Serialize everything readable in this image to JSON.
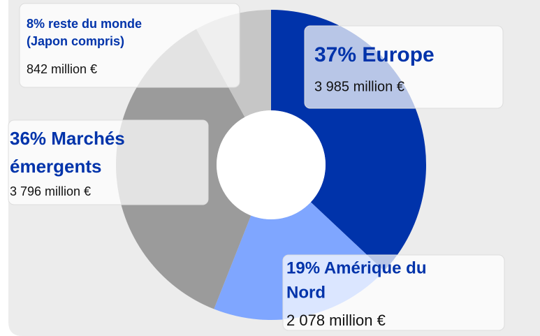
{
  "chart_data": {
    "type": "donut",
    "labels": [
      [
        "37% Europe"
      ],
      [
        "19% Amérique du",
        "Nord"
      ],
      [
        "36% Marchés",
        "émergents"
      ],
      [
        "8% reste du monde",
        "(Japon compris)"
      ]
    ],
    "values": [
      37,
      19,
      36,
      8
    ],
    "amounts": [
      3985,
      2078,
      3796,
      842
    ],
    "amount_labels": [
      "3 985 million €",
      "2 078 million €",
      "3 796 million €",
      "842 million €"
    ],
    "colors": [
      "#0033aa",
      "#7fa6ff",
      "#9b9b9b",
      "#c6c6c6"
    ]
  }
}
